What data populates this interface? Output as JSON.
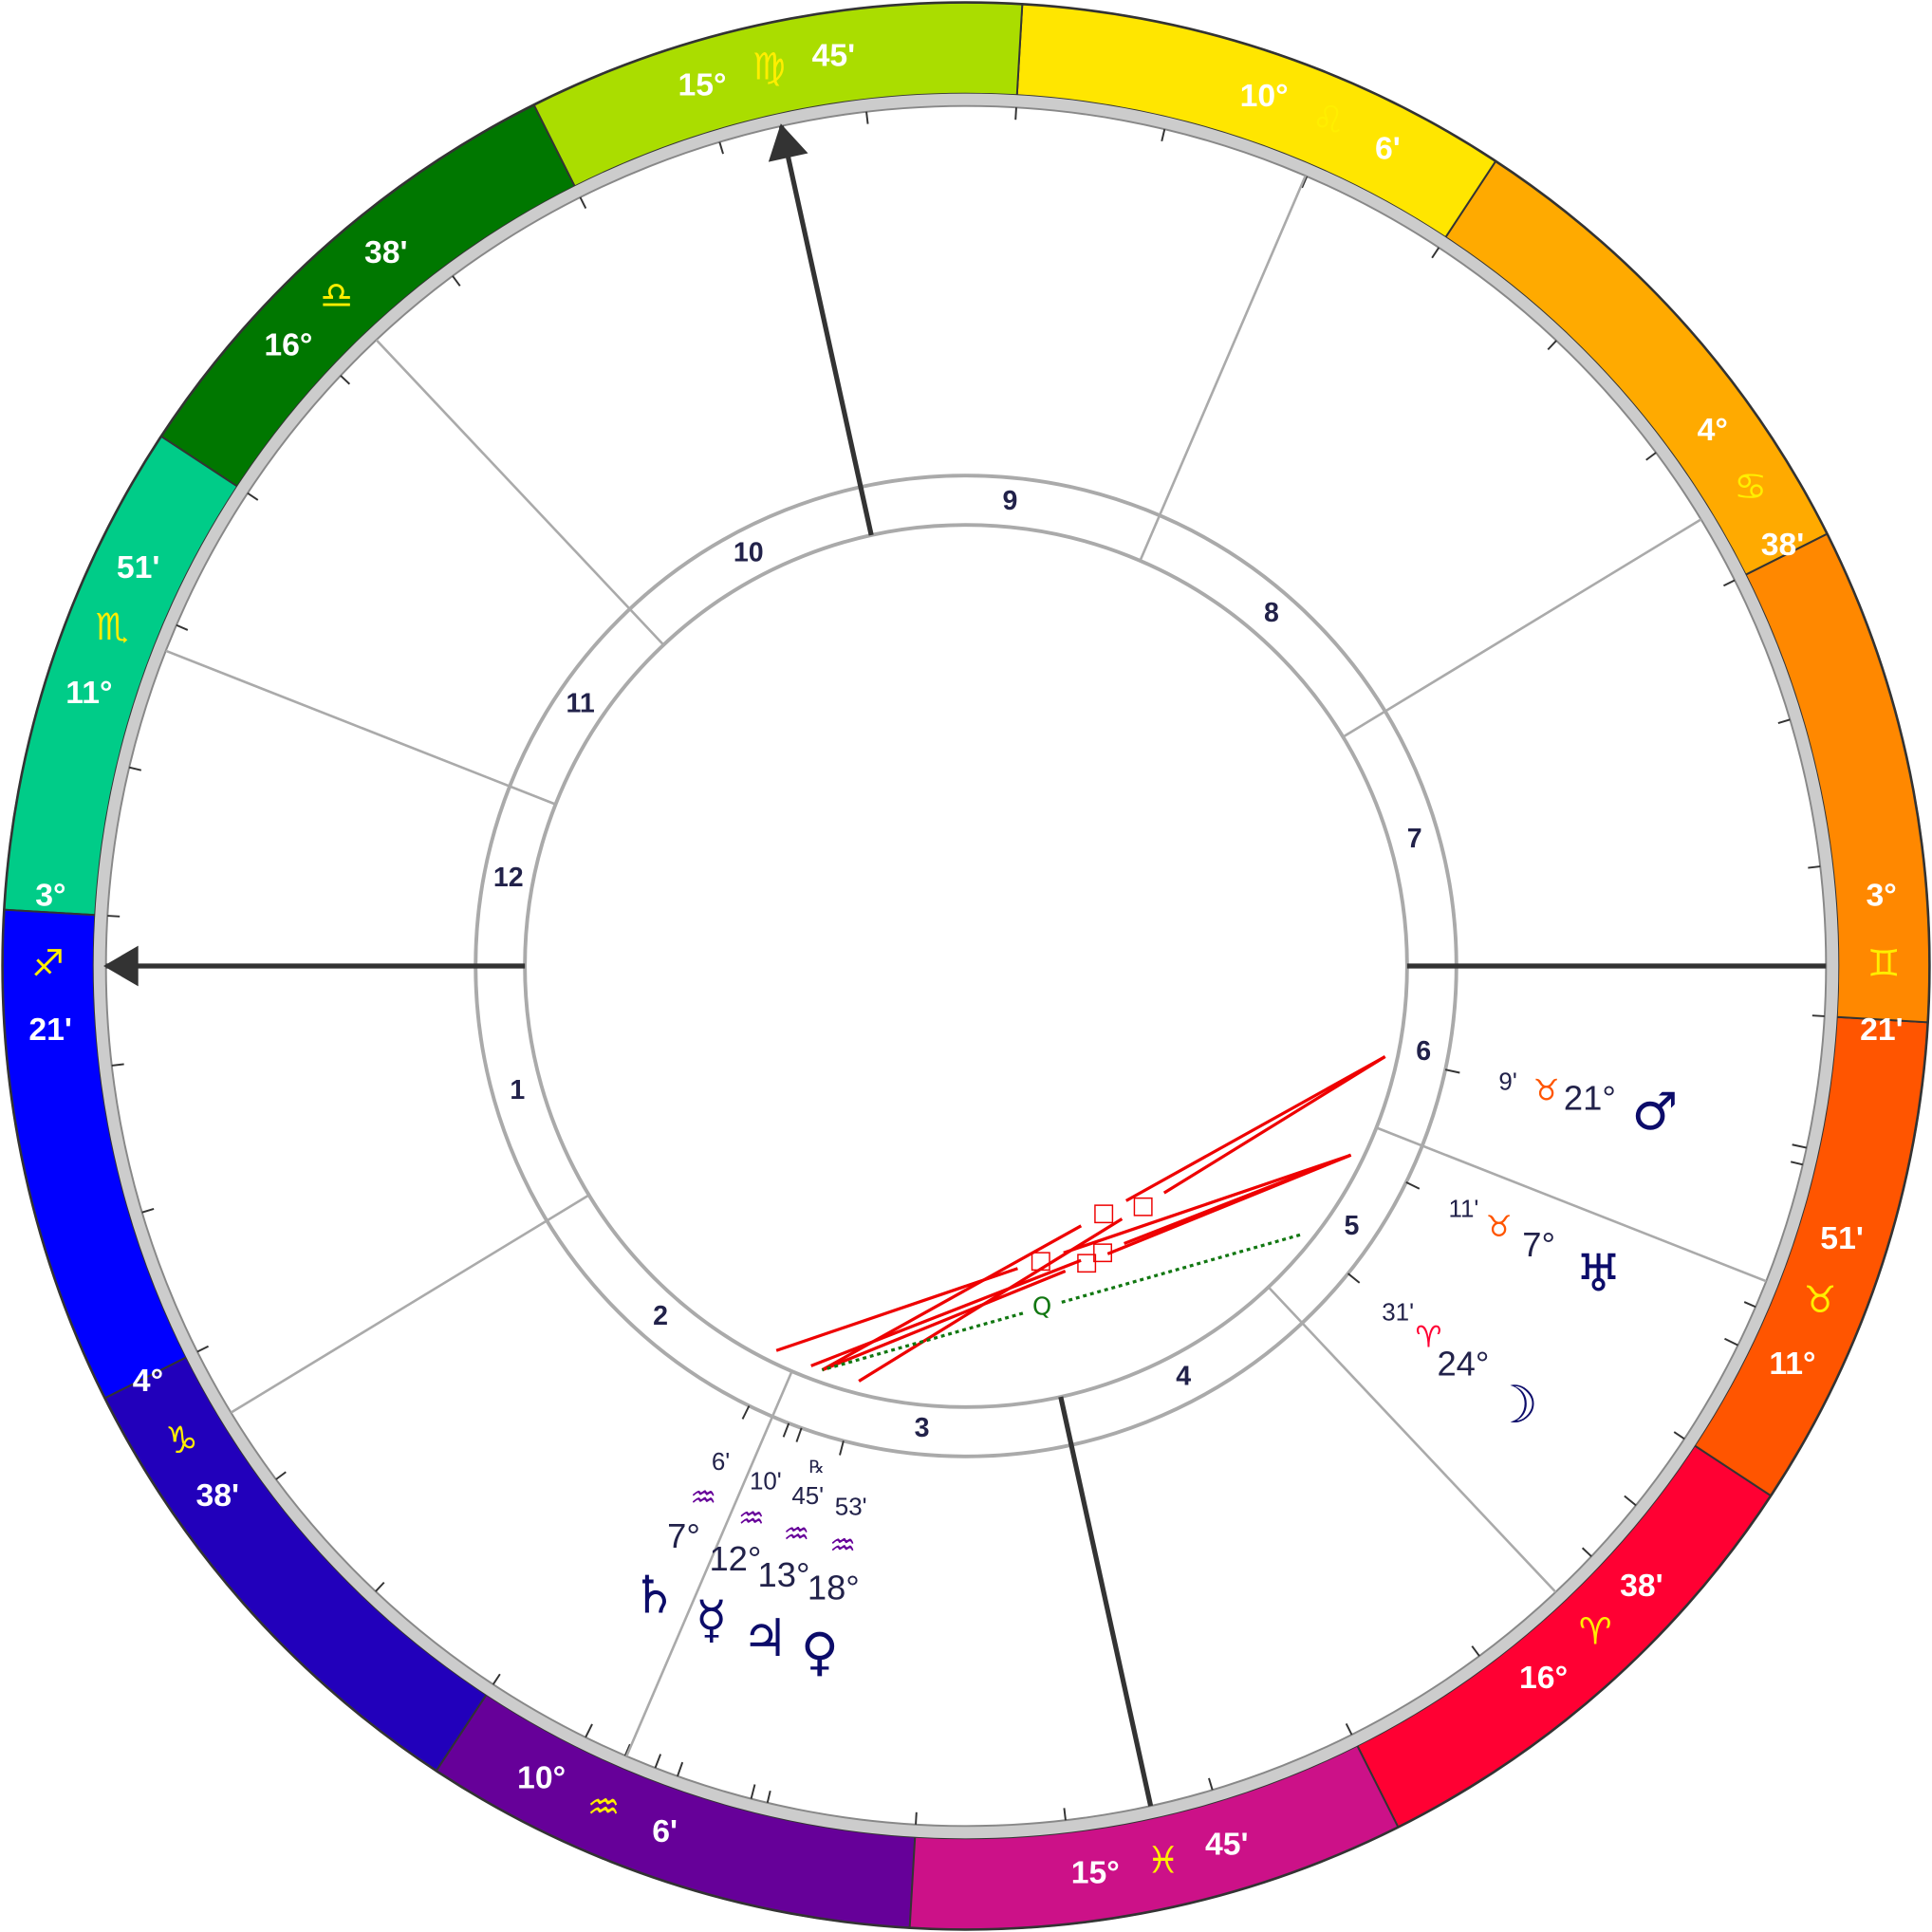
{
  "zodiac_colors": [
    "#ff0033",
    "#ff5500",
    "#ff8800",
    "#ffaa00",
    "#ffe600",
    "#aadd00",
    "#007700",
    "#00cc88",
    "#0000ff",
    "#2200bb",
    "#660099",
    "#cc1188"
  ],
  "houses": [
    {
      "number": "1",
      "sign": 8,
      "glyph": "♐",
      "degree": "3°",
      "minutes": "21'"
    },
    {
      "number": "2",
      "sign": 9,
      "glyph": "♑",
      "degree": "4°",
      "minutes": "38'"
    },
    {
      "number": "3",
      "sign": 10,
      "glyph": "♒",
      "degree": "10°",
      "minutes": "6'"
    },
    {
      "number": "4",
      "sign": 11,
      "glyph": "♓",
      "degree": "15°",
      "minutes": "45'"
    },
    {
      "number": "5",
      "sign": 0,
      "glyph": "♈",
      "degree": "16°",
      "minutes": "38'"
    },
    {
      "number": "6",
      "sign": 1,
      "glyph": "♉",
      "degree": "11°",
      "minutes": "51'"
    },
    {
      "number": "7",
      "sign": 2,
      "glyph": "♊",
      "degree": "3°",
      "minutes": "21'"
    },
    {
      "number": "8",
      "sign": 3,
      "glyph": "♋",
      "degree": "4°",
      "minutes": "38'"
    },
    {
      "number": "9",
      "sign": 4,
      "glyph": "♌",
      "degree": "10°",
      "minutes": "6'"
    },
    {
      "number": "10",
      "sign": 5,
      "glyph": "♍",
      "degree": "15°",
      "minutes": "45'"
    },
    {
      "number": "11",
      "sign": 6,
      "glyph": "♎",
      "degree": "16°",
      "minutes": "38'"
    },
    {
      "number": "12",
      "sign": 7,
      "glyph": "♏",
      "degree": "11°",
      "minutes": "51'"
    }
  ],
  "planets": [
    {
      "glyph": "♂",
      "sign": 1,
      "sign_glyph": "♉",
      "degree": "21°",
      "minutes": "9'"
    },
    {
      "glyph": "♅",
      "sign": 1,
      "sign_glyph": "♉",
      "degree": "7°",
      "minutes": "11'"
    },
    {
      "glyph": "☽",
      "sign": 0,
      "sign_glyph": "♈",
      "degree": "24°",
      "minutes": "31'"
    },
    {
      "glyph": "♄",
      "sign": 10,
      "sign_glyph": "♒",
      "degree": "7°",
      "minutes": "6'"
    },
    {
      "glyph": "☿",
      "sign": 10,
      "sign_glyph": "♒",
      "degree": "12°",
      "minutes": "10'"
    },
    {
      "glyph": "♃",
      "sign": 10,
      "sign_glyph": "♒",
      "degree": "13°",
      "minutes": "45'",
      "retrograde": "℞"
    },
    {
      "glyph": "♀",
      "sign": 10,
      "sign_glyph": "♒",
      "degree": "18°",
      "minutes": "53'"
    }
  ],
  "aspects": [
    {
      "from": 0,
      "to": 6,
      "symbol": "□",
      "color": "#ee0000",
      "style": "solid"
    },
    {
      "from": 0,
      "to": 5,
      "symbol": "□",
      "color": "#ee0000",
      "style": "solid"
    },
    {
      "from": 1,
      "to": 3,
      "symbol": "□",
      "color": "#ee0000",
      "style": "solid"
    },
    {
      "from": 1,
      "to": 4,
      "symbol": "□",
      "color": "#ee0000",
      "style": "solid"
    },
    {
      "from": 1,
      "to": 5,
      "symbol": "□",
      "color": "#ee0000",
      "style": "solid"
    },
    {
      "from": 2,
      "to": 5,
      "symbol": "Q",
      "color": "#117711",
      "style": "dotted"
    }
  ]
}
